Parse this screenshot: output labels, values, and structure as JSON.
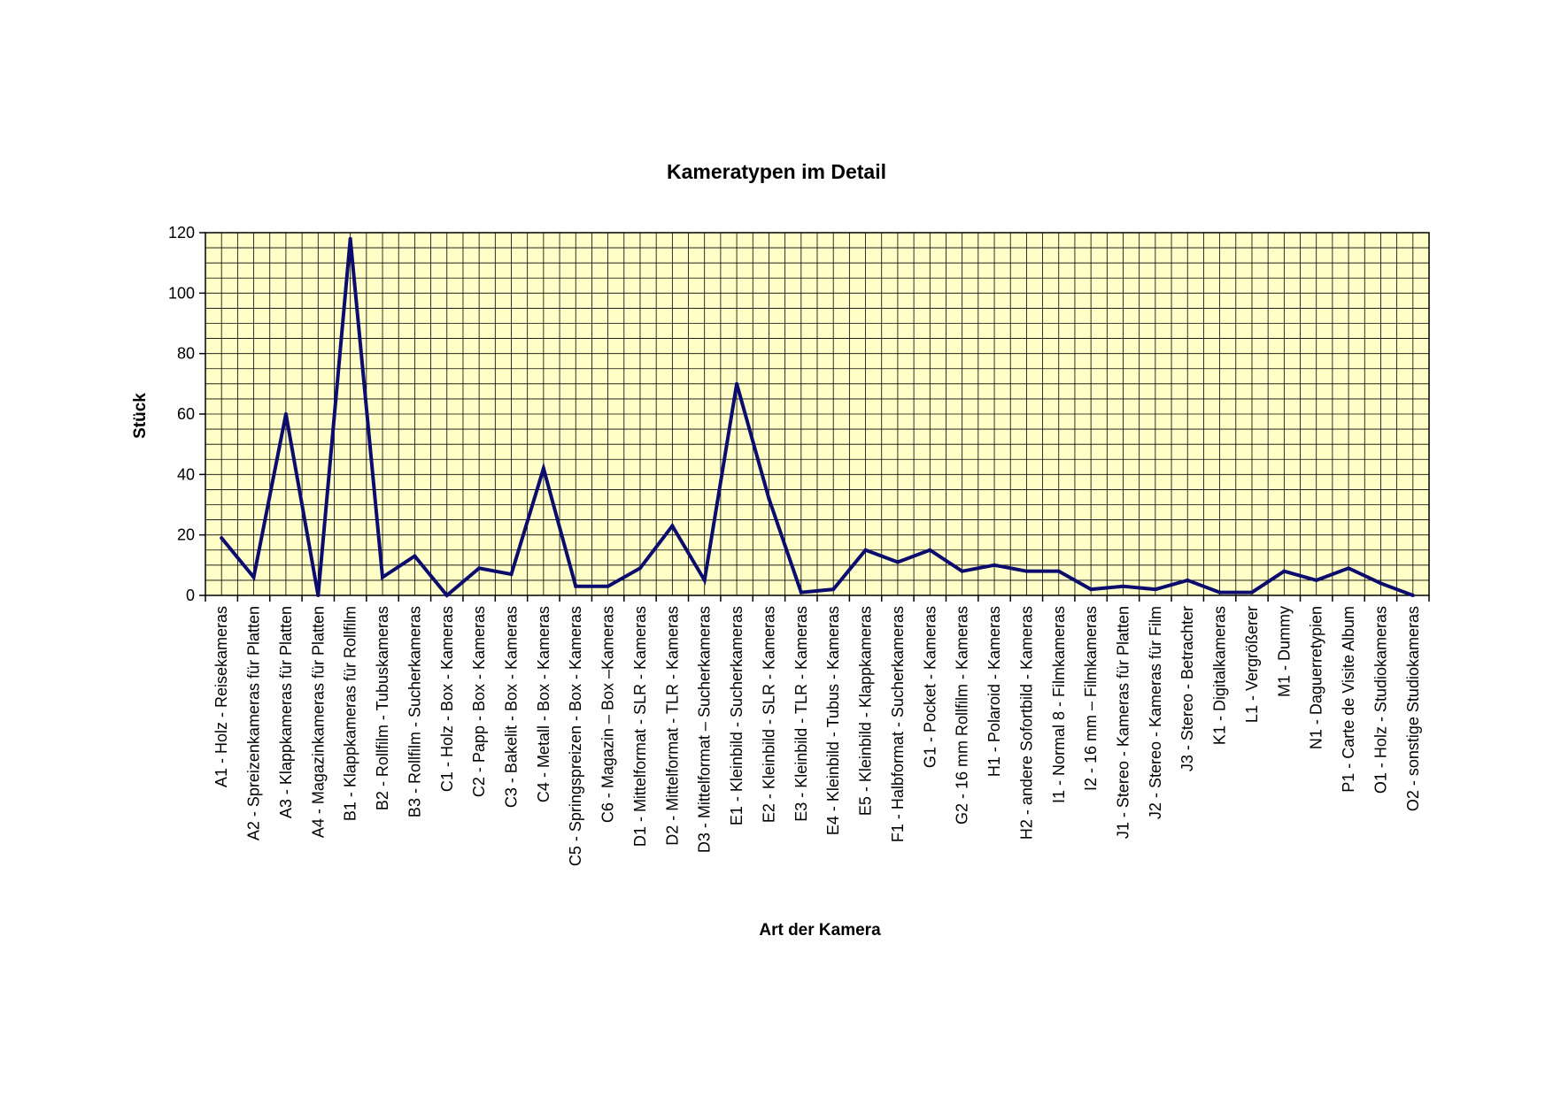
{
  "chart_data": {
    "type": "line",
    "title": "Kameratypen im Detail",
    "xlabel": "Art der Kamera",
    "ylabel": "Stück",
    "ylim": [
      0,
      120
    ],
    "yticks": [
      0,
      20,
      40,
      60,
      80,
      100,
      120
    ],
    "grid": true,
    "legend": "none",
    "colors": {
      "plot_background": "#ffffc8",
      "grid": "#000000",
      "line": "#0c0c6e"
    },
    "categories": [
      "A1 - Holz - Reisekameras",
      "A2 - Spreizenkameras für Platten",
      "A3 - Klappkameras für Platten",
      "A4 - Magazinkameras für Platten",
      "B1 - Klappkameras für Rollfilm",
      "B2 - Rollfilm - Tubuskameras",
      "B3 - Rollfilm - Sucherkameras",
      "C1 - Holz - Box - Kameras",
      "C2 - Papp - Box - Kameras",
      "C3 - Bakelit - Box - Kameras",
      "C4 - Metall - Box - Kameras",
      "C5 - Springspreizen - Box - Kameras",
      "C6 - Magazin – Box –Kameras",
      "D1 - Mittelformat - SLR - Kameras",
      "D2 - Mittelformat - TLR - Kameras",
      "D3 - Mittelformat – Sucherkameras",
      "E1 - Kleinbild - Sucherkameras",
      "E2 - Kleinbild - SLR - Kameras",
      "E3 - Kleinbild - TLR - Kameras",
      "E4 - Kleinbild - Tubus - Kameras",
      "E5 - Kleinbild - Klappkameras",
      "F1 - Halbformat - Sucherkameras",
      "G1 - Pocket - Kameras",
      "G2 - 16 mm Rollfilm - Kameras",
      "H1 - Polaroid - Kameras",
      "H2 - andere Sofortbild - Kameras",
      "I1 - Normal 8 - Filmkameras",
      "I2 - 16 mm – Filmkameras",
      "J1 - Stereo - Kameras für Platten",
      "J2 - Stereo - Kameras für Film",
      "J3 - Stereo - Betrachter",
      "K1 - Digitalkameras",
      "L1 - Vergrößerer",
      "M1 - Dummy",
      "N1 - Daguerretypien",
      "P1 - Carte de Visite Album",
      "O1 - Holz - Studiokameras",
      "O2 - sonstige Studiokameras"
    ],
    "series": [
      {
        "values": [
          19,
          6,
          60,
          0,
          118,
          6,
          13,
          0,
          9,
          7,
          42,
          3,
          3,
          9,
          23,
          5,
          70,
          32,
          1,
          2,
          15,
          11,
          15,
          8,
          10,
          8,
          8,
          2,
          3,
          2,
          5,
          1,
          1,
          8,
          5,
          9,
          4,
          0
        ]
      }
    ]
  }
}
